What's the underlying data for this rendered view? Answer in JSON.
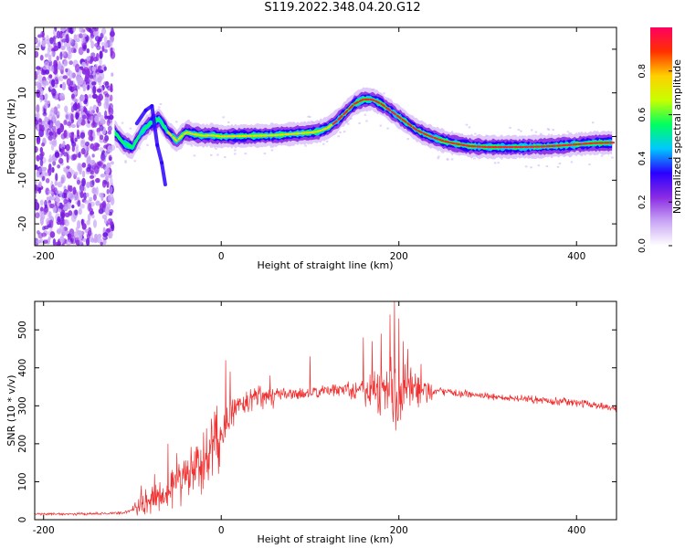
{
  "title": "S119.2022.348.04.20.G12",
  "chart_data": [
    {
      "type": "heatmap",
      "xlabel": "Height of straight line (km)",
      "ylabel": "Frequency (Hz)",
      "xlim": [
        -210,
        445
      ],
      "ylim": [
        -25,
        25
      ],
      "xticks": [
        -200,
        0,
        200,
        400
      ],
      "yticks": [
        -20,
        -10,
        0,
        10,
        20
      ],
      "colorbar": {
        "label": "Normalized spectral amplitude",
        "range": [
          0,
          1
        ],
        "ticks": [
          0.0,
          0.2,
          0.4,
          0.6,
          0.8
        ],
        "tick_labels": [
          "0.0",
          "0.2",
          "0.4",
          "0.6",
          "0.8"
        ],
        "colors": [
          "#ffffff",
          "#c9a6f5",
          "#8a2be2",
          "#2a00ff",
          "#00c8ff",
          "#00ff60",
          "#c8ff00",
          "#ffd000",
          "#ff3000",
          "#ff0060"
        ]
      },
      "noise_region_x": [
        -210,
        -122
      ],
      "ridge": {
        "x": [
          -120,
          -110,
          -100,
          -90,
          -80,
          -70,
          -60,
          -50,
          -40,
          -30,
          -20,
          -10,
          0,
          20,
          40,
          60,
          80,
          100,
          110,
          120,
          130,
          140,
          150,
          160,
          170,
          180,
          190,
          200,
          210,
          220,
          230,
          240,
          250,
          260,
          280,
          300,
          320,
          340,
          360,
          380,
          400,
          420,
          440
        ],
        "y": [
          1.0,
          -1.5,
          -2.5,
          1.0,
          3.0,
          4.0,
          1.0,
          -1.0,
          1.0,
          0.5,
          0.2,
          0.3,
          0.0,
          0.1,
          0.2,
          0.3,
          0.6,
          0.9,
          1.2,
          2.0,
          3.5,
          5.5,
          7.5,
          8.5,
          8.5,
          7.5,
          6.0,
          4.5,
          3.0,
          1.5,
          0.5,
          -0.3,
          -1.0,
          -1.5,
          -2.2,
          -2.4,
          -2.4,
          -2.4,
          -2.3,
          -2.1,
          -1.8,
          -1.5,
          -1.4
        ]
      },
      "branch": {
        "x": [
          -95,
          -85,
          -78,
          -72,
          -67,
          -63
        ],
        "y": [
          3.0,
          6.0,
          7.0,
          -2.0,
          -6.0,
          -11.0
        ]
      }
    },
    {
      "type": "line",
      "xlabel": "Height of straight line (km)",
      "ylabel": "SNR (10 * v/v)",
      "xlim": [
        -210,
        445
      ],
      "ylim": [
        0,
        575
      ],
      "xticks": [
        -200,
        0,
        200,
        400
      ],
      "yticks": [
        0,
        100,
        200,
        300,
        400,
        500
      ],
      "color": "#f03030",
      "envelope": {
        "x": [
          -210,
          -150,
          -110,
          -95,
          -80,
          -60,
          -40,
          -20,
          0,
          10,
          20,
          40,
          60,
          80,
          100,
          120,
          140,
          160,
          180,
          200,
          220,
          240,
          260,
          300,
          340,
          380,
          420,
          445
        ],
        "y": [
          15,
          15,
          18,
          30,
          50,
          80,
          110,
          150,
          220,
          270,
          305,
          325,
          332,
          330,
          332,
          340,
          345,
          345,
          340,
          330,
          335,
          340,
          335,
          325,
          318,
          312,
          303,
          293
        ]
      },
      "spikes": {
        "x": [
          -90,
          -85,
          -75,
          -60,
          -50,
          -30,
          -20,
          -5,
          5,
          10,
          55,
          100,
          160,
          170,
          180,
          190,
          195,
          200,
          205,
          210,
          225
        ],
        "y": [
          90,
          80,
          120,
          200,
          175,
          180,
          230,
          300,
          420,
          390,
          380,
          430,
          480,
          470,
          490,
          540,
          575,
          530,
          470,
          450,
          410
        ]
      }
    }
  ]
}
